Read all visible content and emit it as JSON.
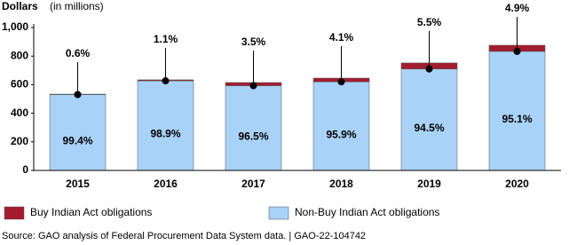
{
  "chart_data": {
    "type": "stacked_bar",
    "title": "Dollars",
    "subtitle": "(in millions)",
    "categories": [
      "2015",
      "2016",
      "2017",
      "2018",
      "2019",
      "2020"
    ],
    "series": [
      {
        "name": "Non-Buy Indian Act obligations",
        "color": "#a9d2f8",
        "values": [
          531,
          627,
          593,
          620,
          710,
          833
        ],
        "share_labels": [
          "99.4%",
          "98.9%",
          "96.5%",
          "95.9%",
          "94.5%",
          "95.1%"
        ]
      },
      {
        "name": "Buy Indian Act obligations",
        "color": "#a31c2e",
        "values": [
          3,
          7,
          22,
          26,
          42,
          43
        ],
        "share_labels": [
          "0.6%",
          "1.1%",
          "3.5%",
          "4.1%",
          "5.5%",
          "4.9%"
        ]
      }
    ],
    "ylim": [
      0,
      1000
    ],
    "yticks": [
      0,
      200,
      400,
      600,
      800,
      {
        "value": 1000,
        "label": "1,000"
      }
    ],
    "source": "Source: GAO analysis of Federal Procurement Data System data.  |  GAO-22-104742"
  }
}
